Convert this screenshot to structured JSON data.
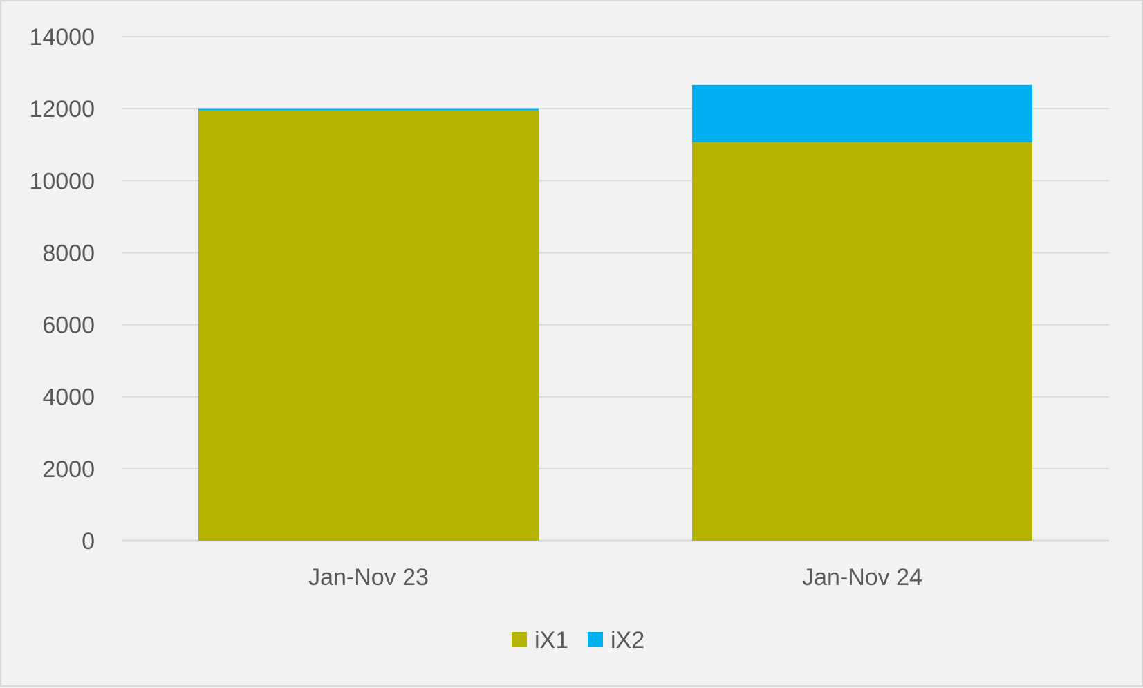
{
  "chart_data": {
    "type": "bar",
    "stacked": true,
    "categories": [
      "Jan-Nov 23",
      "Jan-Nov 24"
    ],
    "series": [
      {
        "name": "iX1",
        "color": "#b3b300",
        "values": [
          11950,
          11060
        ]
      },
      {
        "name": "iX2",
        "color": "#00b0f0",
        "values": [
          60,
          1600
        ]
      }
    ],
    "ylim": [
      0,
      14000
    ],
    "yticks": [
      "0",
      "2000",
      "4000",
      "6000",
      "8000",
      "10000",
      "12000",
      "14000"
    ],
    "grid": true,
    "legend_position": "bottom"
  }
}
